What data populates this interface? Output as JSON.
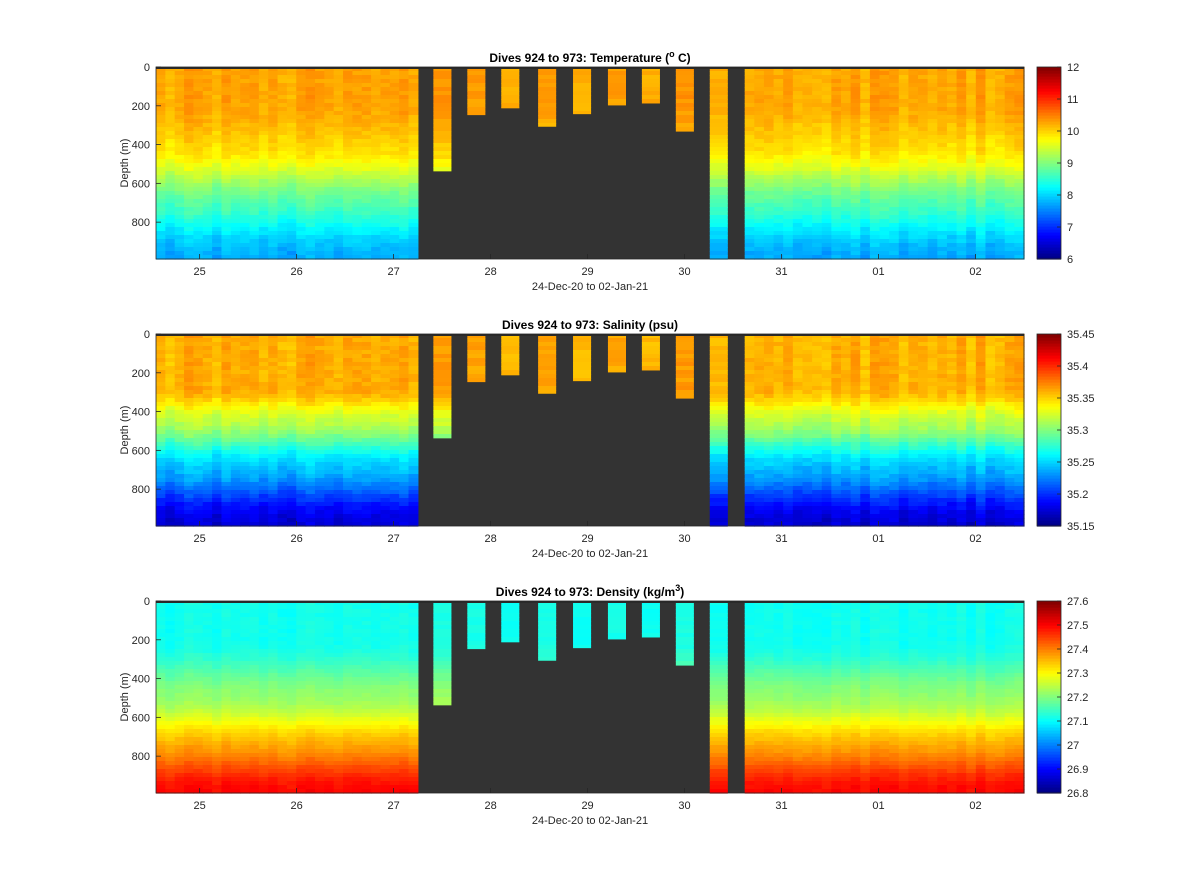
{
  "x_axis_label": "24-Dec-20 to 02-Jan-21",
  "y_axis_label": "Depth (m)",
  "no_data_color": "#333333",
  "colormap": "jet",
  "chart_data": [
    {
      "type": "heatmap",
      "title": "Dives 924 to 973: Temperature (° C)",
      "title_parts": [
        "Dives 924 to 973: Temperature (",
        "o",
        " C)"
      ],
      "xlabel": "24-Dec-20 to 02-Jan-21",
      "ylabel": "Depth (m)",
      "x_ticks": [
        "25",
        "26",
        "27",
        "28",
        "29",
        "30",
        "31",
        "01",
        "02"
      ],
      "y_ticks": [
        0,
        200,
        400,
        600,
        800
      ],
      "ylim": [
        990,
        0
      ],
      "colorbar_ticks": [
        6,
        7,
        8,
        9,
        10,
        11,
        12
      ],
      "clim": [
        6,
        12
      ],
      "variable": "temperature"
    },
    {
      "type": "heatmap",
      "title": "Dives 924 to 973: Salinity (psu)",
      "title_parts": [
        "Dives 924 to 973: Salinity (psu)"
      ],
      "xlabel": "24-Dec-20 to 02-Jan-21",
      "ylabel": "Depth (m)",
      "x_ticks": [
        "25",
        "26",
        "27",
        "28",
        "29",
        "30",
        "31",
        "01",
        "02"
      ],
      "y_ticks": [
        0,
        200,
        400,
        600,
        800
      ],
      "ylim": [
        990,
        0
      ],
      "colorbar_ticks": [
        35.15,
        35.2,
        35.25,
        35.3,
        35.35,
        35.4,
        35.45
      ],
      "colorbar_tick_labels": [
        "35.15",
        "35.2",
        "35.25",
        "35.3",
        "35.35",
        "35.4",
        "35.45"
      ],
      "clim": [
        35.15,
        35.45
      ],
      "variable": "salinity"
    },
    {
      "type": "heatmap",
      "title": "Dives 924 to 973: Density (kg/m³)",
      "title_parts": [
        "Dives 924 to 973: Density (kg/m",
        "3",
        ")"
      ],
      "xlabel": "24-Dec-20 to 02-Jan-21",
      "ylabel": "Depth (m)",
      "x_ticks": [
        "25",
        "26",
        "27",
        "28",
        "29",
        "30",
        "31",
        "01",
        "02"
      ],
      "y_ticks": [
        0,
        200,
        400,
        600,
        800
      ],
      "ylim": [
        990,
        0
      ],
      "colorbar_ticks": [
        26.8,
        26.9,
        27,
        27.1,
        27.2,
        27.3,
        27.4,
        27.5,
        27.6
      ],
      "colorbar_tick_labels": [
        "26.8",
        "26.9",
        "27",
        "27.1",
        "27.2",
        "27.3",
        "27.4",
        "27.5",
        "27.6"
      ],
      "clim": [
        26.8,
        27.6
      ],
      "variable": "density"
    }
  ],
  "dives": {
    "before_gap": {
      "x_start": 24.55,
      "x_end": 27.25,
      "max_depth": 990
    },
    "after_gap": {
      "x_start": 30.62,
      "x_end": 33.5,
      "max_depth": 990
    },
    "shallow": [
      {
        "x": 27.5,
        "max_depth": 535
      },
      {
        "x": 27.85,
        "max_depth": 245
      },
      {
        "x": 28.2,
        "max_depth": 210
      },
      {
        "x": 28.58,
        "max_depth": 305
      },
      {
        "x": 28.94,
        "max_depth": 240
      },
      {
        "x": 29.3,
        "max_depth": 195
      },
      {
        "x": 29.65,
        "max_depth": 185
      },
      {
        "x": 30.0,
        "max_depth": 330
      },
      {
        "x": 30.35,
        "max_depth": 990
      }
    ]
  }
}
